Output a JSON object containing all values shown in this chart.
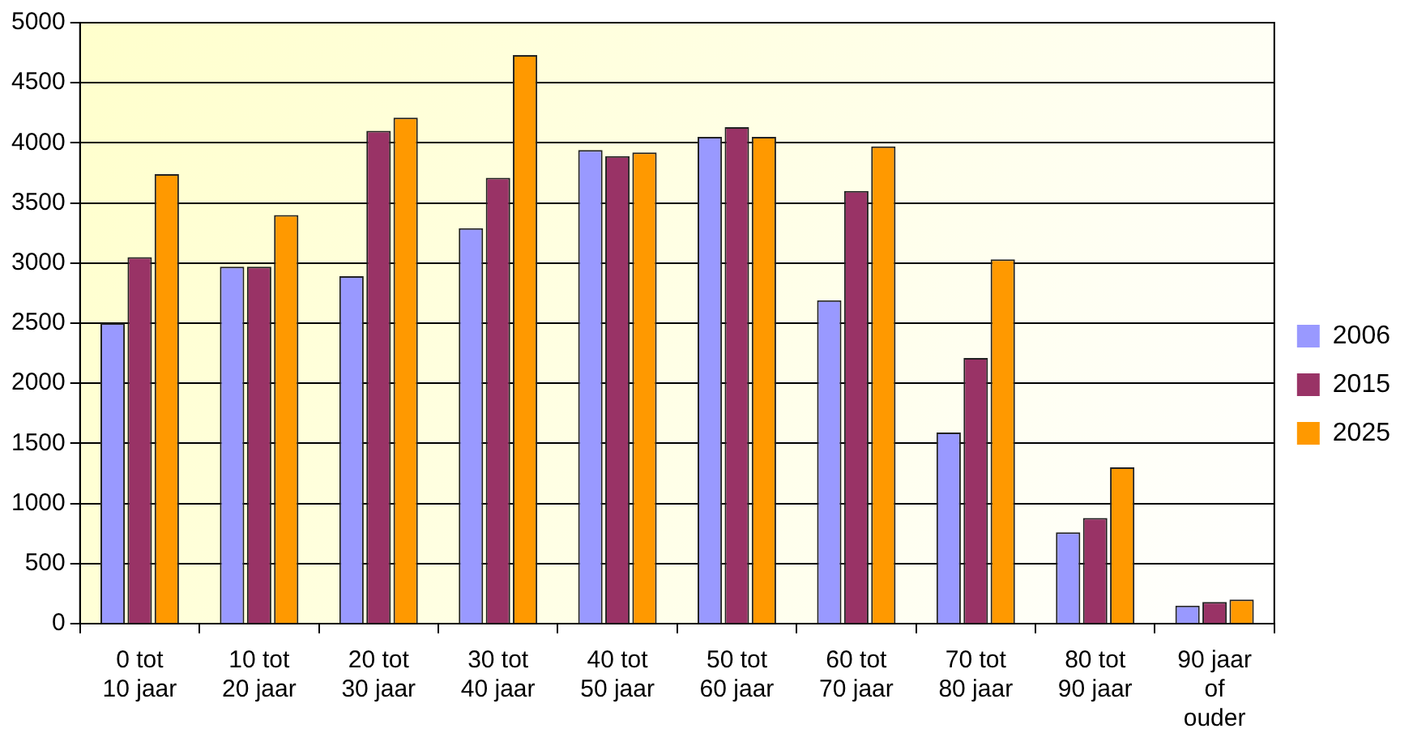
{
  "chart_data": {
    "type": "bar",
    "categories": [
      "0 tot 10 jaar",
      "10 tot 20 jaar",
      "20 tot 30 jaar",
      "30 tot 40 jaar",
      "40 tot 50 jaar",
      "50 tot 60 jaar",
      "60 tot 70 jaar",
      "70 tot 80 jaar",
      "80 tot 90 jaar",
      "90 jaar of ouder"
    ],
    "series": [
      {
        "name": "2006",
        "color": "#9999ff",
        "values": [
          2500,
          2970,
          2890,
          3290,
          3940,
          4050,
          2690,
          1590,
          760,
          150
        ]
      },
      {
        "name": "2015",
        "color": "#993366",
        "values": [
          3050,
          2970,
          4100,
          3710,
          3890,
          4130,
          3600,
          2210,
          880,
          180
        ]
      },
      {
        "name": "2025",
        "color": "#ff9900",
        "values": [
          3740,
          3400,
          4210,
          4730,
          3920,
          4050,
          3970,
          3030,
          1300,
          200
        ]
      }
    ],
    "ylim": [
      0,
      5000
    ],
    "yticks": [
      0,
      500,
      1000,
      1500,
      2000,
      2500,
      3000,
      3500,
      4000,
      4500,
      5000
    ],
    "grid": "y",
    "legend": "right"
  }
}
